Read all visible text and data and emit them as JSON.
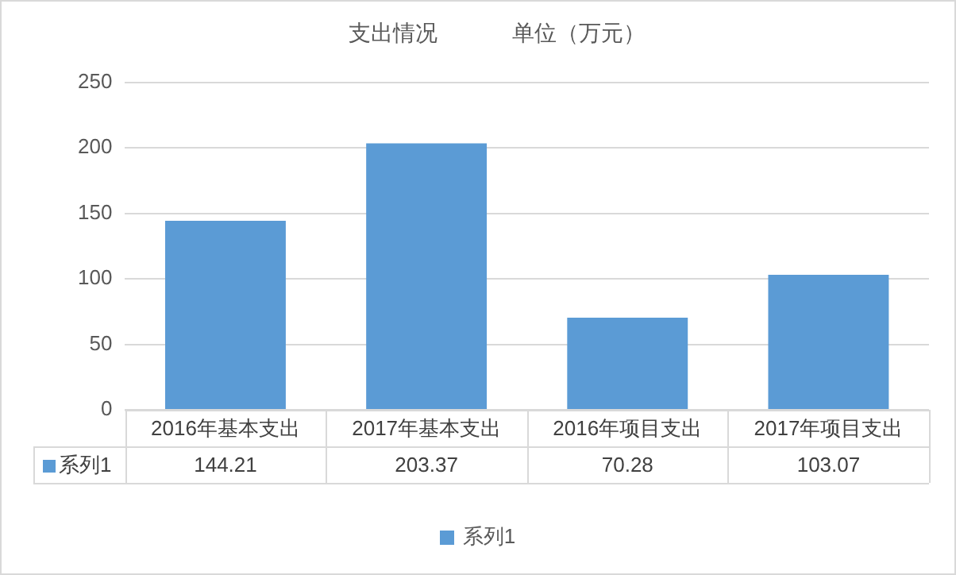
{
  "chart_data": {
    "type": "bar",
    "title": "支出情况            单位（万元）",
    "categories": [
      "2016年基本支出",
      "2017年基本支出",
      "2016年项目支出",
      "2017年项目支出"
    ],
    "series": [
      {
        "name": "系列1",
        "color": "#5b9bd5",
        "values": [
          144.21,
          203.37,
          70.28,
          103.07
        ]
      }
    ],
    "ylim": [
      0,
      250
    ],
    "yticks": [
      0,
      50,
      100,
      150,
      200,
      250
    ],
    "grid": "y",
    "legend": "bottom",
    "data_labels": true
  }
}
